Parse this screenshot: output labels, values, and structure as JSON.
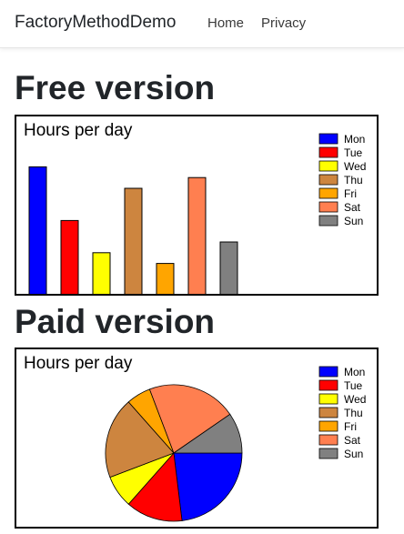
{
  "nav": {
    "brand": "FactoryMethodDemo",
    "links": [
      "Home",
      "Privacy"
    ]
  },
  "sections": [
    {
      "heading": "Free version"
    },
    {
      "heading": "Paid version"
    }
  ],
  "chart_data": [
    {
      "type": "bar",
      "title": "Hours per day",
      "categories": [
        "Mon",
        "Tue",
        "Wed",
        "Thu",
        "Fri",
        "Sat",
        "Sun"
      ],
      "values": [
        12,
        7,
        4,
        10,
        3,
        11,
        5
      ],
      "colors": [
        "#0000ff",
        "#ff0000",
        "#ffff00",
        "#cd853f",
        "#ffa500",
        "#ff7f50",
        "#808080"
      ],
      "ylim": [
        0,
        15
      ],
      "xlabel": "",
      "ylabel": "",
      "grid": false,
      "legend": "top-right"
    },
    {
      "type": "pie",
      "title": "Hours per day",
      "categories": [
        "Mon",
        "Tue",
        "Wed",
        "Thu",
        "Fri",
        "Sat",
        "Sun"
      ],
      "values": [
        12,
        7,
        4,
        10,
        3,
        11,
        5
      ],
      "colors": [
        "#0000ff",
        "#ff0000",
        "#ffff00",
        "#cd853f",
        "#ffa500",
        "#ff7f50",
        "#808080"
      ],
      "legend": "top-right"
    }
  ]
}
